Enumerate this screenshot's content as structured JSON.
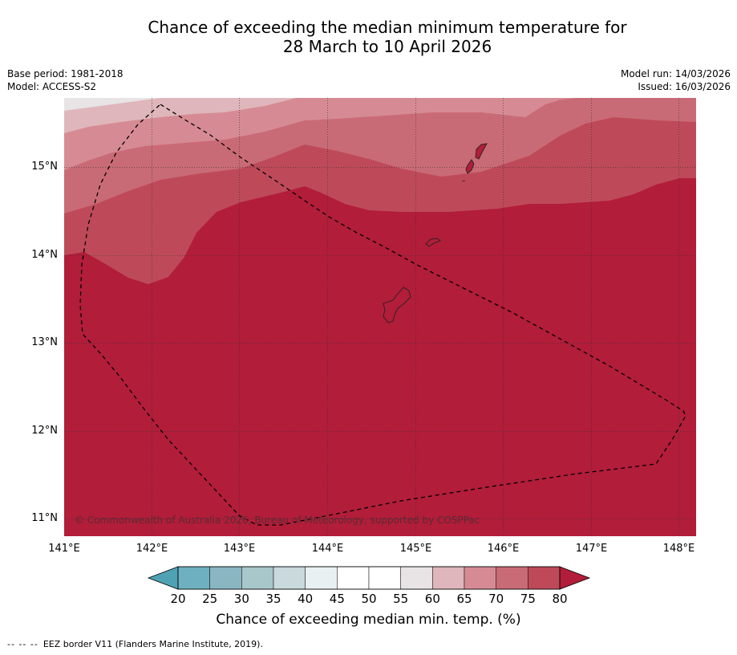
{
  "title": {
    "line1": "Chance of exceeding the median minimum temperature for",
    "line2": "28 March to 10 April 2026"
  },
  "meta": {
    "base_period": "Base period: 1981-2018",
    "model": "Model: ACCESS-S2",
    "model_run": "Model run: 14/03/2026",
    "issued": "Issued: 16/03/2026"
  },
  "map": {
    "lon_range": [
      141.0,
      148.2
    ],
    "lat_range": [
      10.8,
      15.8
    ],
    "x_ticks": [
      "141°E",
      "142°E",
      "143°E",
      "144°E",
      "145°E",
      "146°E",
      "147°E",
      "148°E"
    ],
    "y_ticks": [
      "15°N",
      "14°N",
      "13°N",
      "12°N",
      "11°N"
    ],
    "credit": "© Commonwealth of Australia 2026, Bureau of Meteorology, supported by COSPPac",
    "dominant_category": "80+",
    "eez_border_style": "dashed"
  },
  "legend": {
    "ticks": [
      "20",
      "25",
      "30",
      "35",
      "40",
      "45",
      "50",
      "55",
      "60",
      "65",
      "70",
      "75",
      "80"
    ],
    "colors": [
      "#4fa2b4",
      "#6fb0c0",
      "#8ab6c2",
      "#a8c7cb",
      "#c9d9dc",
      "#e9f0f1",
      "#ffffff",
      "#ffffff",
      "#e8e4e5",
      "#dfb6bb",
      "#d68b94",
      "#c96b76",
      "#be4a59",
      "#b21d3a"
    ],
    "title": "Chance of exceeding median min. temp. (%)"
  },
  "footnote": {
    "symbol": "-- -- --",
    "text": "EEZ border V11 (Flanders Marine Institute, 2019)."
  }
}
